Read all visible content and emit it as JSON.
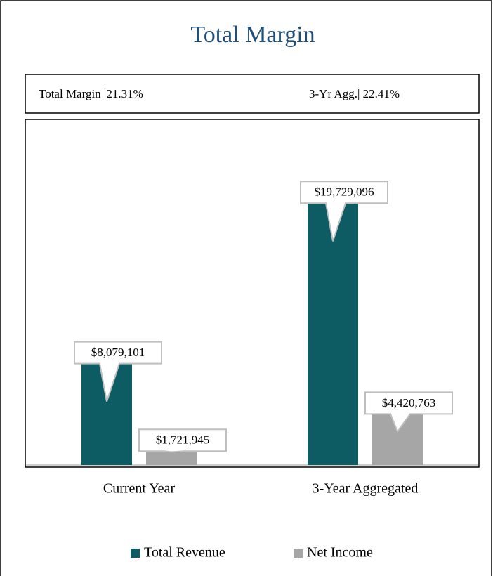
{
  "chart_data": {
    "type": "bar",
    "title": "Total Margin",
    "summary": [
      "Total Margin |21.31%",
      "3-Yr Agg.| 22.41%"
    ],
    "categories": [
      "Current Year",
      "3-Year Aggregated"
    ],
    "series": [
      {
        "name": "Total Revenue",
        "color": "#0d5c63",
        "values": [
          8079101,
          19729096
        ],
        "value_labels": [
          "$8,079,101",
          "$19,729,096"
        ]
      },
      {
        "name": "Net Income",
        "color": "#a6a6a6",
        "values": [
          1721945,
          4420763
        ],
        "value_labels": [
          "$1,721,945",
          "$4,420,763"
        ]
      }
    ],
    "ylim": [
      0,
      25000000
    ],
    "grid": false,
    "legend": "bottom"
  }
}
